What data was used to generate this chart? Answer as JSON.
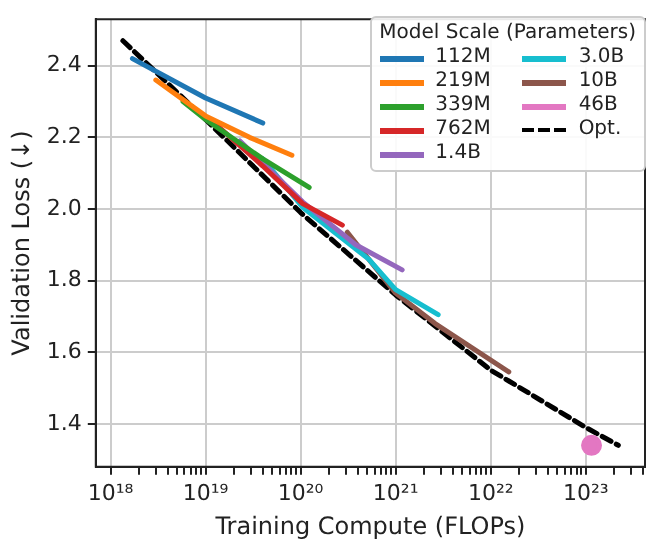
{
  "chart_data": {
    "type": "line",
    "xlabel": "Training Compute (FLOPs)",
    "ylabel": "Validation Loss (↓)",
    "legend_title": "Model Scale (Parameters)",
    "log": "x",
    "grid": true,
    "legend": "top right",
    "marker": "none",
    "line_style": "solid",
    "xlim": [
      7e+17,
      4.2e+23
    ],
    "ylim": [
      1.28,
      2.53
    ],
    "xticks": [
      {
        "value": 1e+18,
        "label": "10¹⁸"
      },
      {
        "value": 2e+18,
        "label": null
      },
      {
        "value": 3e+18,
        "label": null
      },
      {
        "value": 4e+18,
        "label": null
      },
      {
        "value": 5e+18,
        "label": null
      },
      {
        "value": 6e+18,
        "label": null
      },
      {
        "value": 7e+18,
        "label": null
      },
      {
        "value": 8e+18,
        "label": null
      },
      {
        "value": 9e+18,
        "label": null
      },
      {
        "value": 1e+19,
        "label": "10¹⁹"
      },
      {
        "value": 2e+19,
        "label": null
      },
      {
        "value": 3e+19,
        "label": null
      },
      {
        "value": 4e+19,
        "label": null
      },
      {
        "value": 5e+19,
        "label": null
      },
      {
        "value": 6e+19,
        "label": null
      },
      {
        "value": 7e+19,
        "label": null
      },
      {
        "value": 8e+19,
        "label": null
      },
      {
        "value": 9e+19,
        "label": null
      },
      {
        "value": 1e+20,
        "label": "10²⁰"
      },
      {
        "value": 2e+20,
        "label": null
      },
      {
        "value": 3e+20,
        "label": null
      },
      {
        "value": 4e+20,
        "label": null
      },
      {
        "value": 5e+20,
        "label": null
      },
      {
        "value": 6e+20,
        "label": null
      },
      {
        "value": 7e+20,
        "label": null
      },
      {
        "value": 8e+20,
        "label": null
      },
      {
        "value": 9e+20,
        "label": null
      },
      {
        "value": 1e+21,
        "label": "10²¹"
      },
      {
        "value": 2e+21,
        "label": null
      },
      {
        "value": 3e+21,
        "label": null
      },
      {
        "value": 4e+21,
        "label": null
      },
      {
        "value": 5e+21,
        "label": null
      },
      {
        "value": 6e+21,
        "label": null
      },
      {
        "value": 7e+21,
        "label": null
      },
      {
        "value": 8e+21,
        "label": null
      },
      {
        "value": 9e+21,
        "label": null
      },
      {
        "value": 1e+22,
        "label": "10²²"
      },
      {
        "value": 2e+22,
        "label": null
      },
      {
        "value": 3e+22,
        "label": null
      },
      {
        "value": 4e+22,
        "label": null
      },
      {
        "value": 5e+22,
        "label": null
      },
      {
        "value": 6e+22,
        "label": null
      },
      {
        "value": 7e+22,
        "label": null
      },
      {
        "value": 8e+22,
        "label": null
      },
      {
        "value": 9e+22,
        "label": null
      },
      {
        "value": 1e+23,
        "label": "10²³"
      },
      {
        "value": 2e+23,
        "label": null
      },
      {
        "value": 3e+23,
        "label": null
      },
      {
        "value": 4e+23,
        "label": null
      }
    ],
    "yticks": [
      {
        "value": 1.4,
        "label": "1.4"
      },
      {
        "value": 1.6,
        "label": "1.6"
      },
      {
        "value": 1.8,
        "label": "1.8"
      },
      {
        "value": 2.0,
        "label": "2.0"
      },
      {
        "value": 2.2,
        "label": "2.2"
      },
      {
        "value": 2.4,
        "label": "2.4"
      }
    ],
    "series": [
      {
        "name": "112M",
        "color": "#1f77b4",
        "x": [
          1.7e+18,
          1e+19,
          4e+19
        ],
        "values": [
          2.42,
          2.31,
          2.24
        ]
      },
      {
        "name": "219M",
        "color": "#ff7f0e",
        "x": [
          3e+18,
          1e+19,
          2.9e+19,
          8.1e+19
        ],
        "values": [
          2.36,
          2.26,
          2.2,
          2.15
        ]
      },
      {
        "name": "339M",
        "color": "#2ca02c",
        "x": [
          5.8e+18,
          1e+19,
          4e+19,
          1.23e+20
        ],
        "values": [
          2.3,
          2.25,
          2.14,
          2.06
        ]
      },
      {
        "name": "762M",
        "color": "#d62728",
        "x": [
          1.3e+19,
          4e+19,
          1.05e+20,
          2.75e+20
        ],
        "values": [
          2.235,
          2.12,
          2.015,
          1.955
        ]
      },
      {
        "name": "1.4B",
        "color": "#9467bd",
        "x": [
          2.3e+19,
          1.05e+20,
          3.8e+20,
          1.17e+21
        ],
        "values": [
          2.19,
          2.02,
          1.9,
          1.83
        ]
      },
      {
        "name": "3.0B",
        "color": "#17becf",
        "x": [
          4e+19,
          1.05e+20,
          5.2e+20,
          1e+21,
          2.8e+21
        ],
        "values": [
          2.14,
          2.005,
          1.86,
          1.775,
          1.705
        ]
      },
      {
        "name": "10B",
        "color": "#8c564b",
        "x": [
          3.1e+20,
          1e+21,
          2.6e+21,
          1.55e+22
        ],
        "values": [
          1.935,
          1.765,
          1.68,
          1.545
        ]
      },
      {
        "name": "46B",
        "color": "#e377c2",
        "marker": "circle",
        "x": [
          1.15e+23
        ],
        "values": [
          1.34
        ]
      },
      {
        "name": "Opt.",
        "color": "#000000",
        "line_style": "dashed",
        "x": [
          1.35e+18,
          1e+19,
          1e+20,
          1e+21,
          1e+22,
          1e+23,
          2.2e+23
        ],
        "values": [
          2.47,
          2.25,
          1.99,
          1.76,
          1.55,
          1.39,
          1.34
        ]
      }
    ]
  }
}
